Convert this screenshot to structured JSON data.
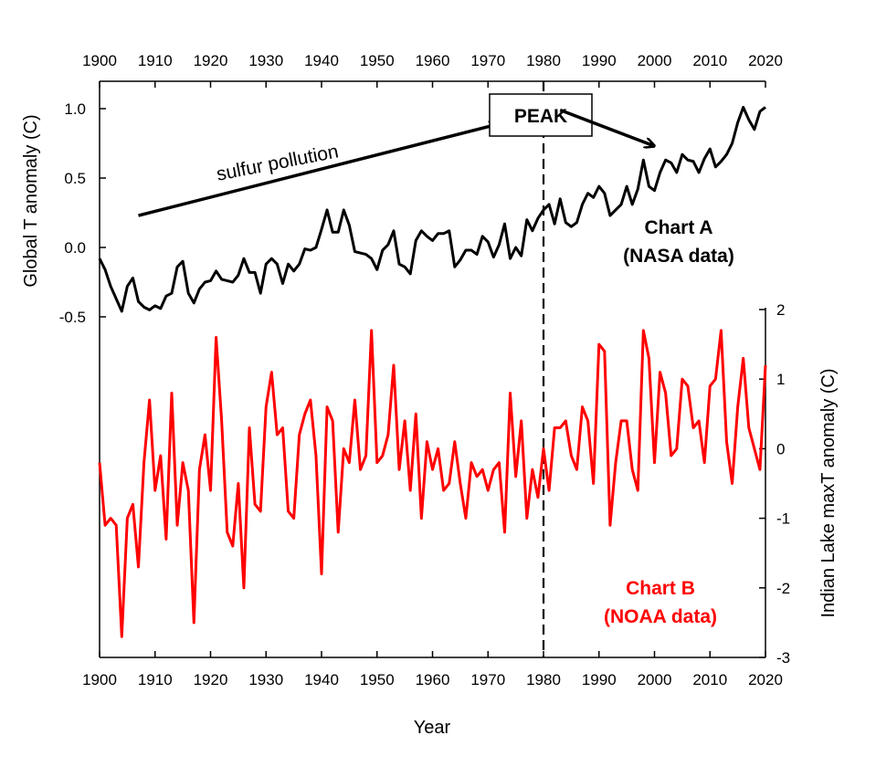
{
  "chart_data": {
    "type": "line",
    "xlabel": "Year",
    "xlim": [
      1900,
      2020
    ],
    "x_ticks": [
      1900,
      1910,
      1920,
      1930,
      1940,
      1950,
      1960,
      1970,
      1980,
      1990,
      2000,
      2010,
      2020
    ],
    "x_tick_labels": [
      "1900",
      "1910",
      "1920",
      "1930",
      "1940",
      "1950",
      "1960",
      "1970",
      "1980",
      "1990",
      "2000",
      "2010",
      "2020"
    ],
    "left_axis": {
      "label": "Global T anomaly (C)",
      "ylim": [
        -0.5,
        1.2
      ],
      "ticks": [
        -0.5,
        0.0,
        0.5,
        1.0
      ],
      "tick_labels": [
        "-0.5",
        "0.0",
        "0.5",
        "1.0"
      ]
    },
    "right_axis": {
      "label": "Indian Lake maxT anomaly (C)",
      "ylim": [
        -3,
        2
      ],
      "ticks": [
        -3,
        -2,
        -1,
        0,
        1,
        2
      ],
      "tick_labels": [
        "-3",
        "-2",
        "-1",
        "0",
        "1",
        "2"
      ]
    },
    "series": [
      {
        "name": "Chart A",
        "subtitle": "(NASA data)",
        "axis": "left",
        "color": "#000000",
        "x_start": 1900,
        "values": [
          -0.08,
          -0.16,
          -0.28,
          -0.37,
          -0.46,
          -0.28,
          -0.22,
          -0.39,
          -0.43,
          -0.45,
          -0.42,
          -0.44,
          -0.35,
          -0.33,
          -0.14,
          -0.1,
          -0.33,
          -0.4,
          -0.3,
          -0.25,
          -0.24,
          -0.17,
          -0.23,
          -0.24,
          -0.25,
          -0.2,
          -0.08,
          -0.18,
          -0.18,
          -0.33,
          -0.12,
          -0.08,
          -0.12,
          -0.26,
          -0.12,
          -0.17,
          -0.12,
          -0.01,
          -0.02,
          0.0,
          0.13,
          0.27,
          0.11,
          0.11,
          0.27,
          0.16,
          -0.03,
          -0.04,
          -0.05,
          -0.08,
          -0.16,
          -0.02,
          0.02,
          0.12,
          -0.12,
          -0.14,
          -0.19,
          0.05,
          0.12,
          0.08,
          0.05,
          0.1,
          0.1,
          0.12,
          -0.14,
          -0.09,
          -0.02,
          -0.02,
          -0.05,
          0.08,
          0.04,
          -0.07,
          0.02,
          0.17,
          -0.08,
          0.0,
          -0.06,
          0.2,
          0.12,
          0.21,
          0.27,
          0.31,
          0.17,
          0.35,
          0.18,
          0.15,
          0.18,
          0.31,
          0.39,
          0.36,
          0.44,
          0.39,
          0.23,
          0.27,
          0.31,
          0.44,
          0.31,
          0.42,
          0.63,
          0.44,
          0.41,
          0.54,
          0.63,
          0.61,
          0.54,
          0.67,
          0.63,
          0.62,
          0.54,
          0.64,
          0.71,
          0.58,
          0.62,
          0.67,
          0.75,
          0.9,
          1.01,
          0.92,
          0.85,
          0.98,
          1.01
        ]
      },
      {
        "name": "Chart B",
        "subtitle": "(NOAA data)",
        "axis": "right",
        "color": "#ff0000",
        "x_start": 1900,
        "values": [
          -0.2,
          -1.1,
          -1.0,
          -1.1,
          -2.7,
          -1.0,
          -0.8,
          -1.7,
          -0.2,
          0.7,
          -0.6,
          -0.1,
          -1.3,
          0.8,
          -1.1,
          -0.2,
          -0.6,
          -2.5,
          -0.3,
          0.2,
          -0.6,
          1.6,
          0.4,
          -1.2,
          -1.4,
          -0.5,
          -2.0,
          0.3,
          -0.8,
          -0.9,
          0.6,
          1.1,
          0.2,
          0.3,
          -0.9,
          -1.0,
          0.2,
          0.5,
          0.7,
          -0.1,
          -1.8,
          0.6,
          0.4,
          -1.2,
          0.0,
          -0.2,
          0.7,
          -0.3,
          -0.1,
          1.7,
          -0.2,
          -0.1,
          0.2,
          1.2,
          -0.3,
          0.4,
          -0.6,
          0.5,
          -1.0,
          0.1,
          -0.3,
          0.0,
          -0.6,
          -0.5,
          0.1,
          -0.5,
          -1.0,
          -0.2,
          -0.4,
          -0.3,
          -0.6,
          -0.3,
          -0.2,
          -1.2,
          0.8,
          -0.4,
          0.4,
          -1.0,
          -0.3,
          -0.7,
          0.0,
          -0.6,
          0.3,
          0.3,
          0.4,
          -0.1,
          -0.3,
          0.6,
          0.4,
          -0.5,
          1.5,
          1.4,
          -1.1,
          -0.2,
          0.4,
          0.4,
          -0.3,
          -0.6,
          1.7,
          1.3,
          -0.2,
          1.1,
          0.8,
          -0.1,
          0.0,
          1.0,
          0.9,
          0.3,
          0.4,
          -0.2,
          0.9,
          1.0,
          1.7,
          0.1,
          -0.5,
          0.6,
          1.3,
          0.3,
          0.0,
          -0.3,
          1.2
        ]
      }
    ],
    "annotations": [
      {
        "type": "arrow",
        "text": "sulfur pollution",
        "from": [
          1907,
          0.23
        ],
        "to": [
          1972,
          0.89
        ]
      },
      {
        "type": "box",
        "text": "PEAK"
      },
      {
        "type": "arrow",
        "text": "",
        "from": [
          1983,
          0.99
        ],
        "to": [
          2000,
          0.73
        ]
      },
      {
        "type": "vline",
        "x": 1980,
        "style": "dashed"
      }
    ]
  }
}
